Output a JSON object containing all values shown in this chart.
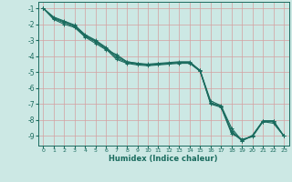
{
  "xlabel": "Humidex (Indice chaleur)",
  "background_color": "#cce8e4",
  "grid_color": "#d4a0a0",
  "line_color": "#1a6b5e",
  "xlim": [
    -0.5,
    23.5
  ],
  "ylim": [
    -9.6,
    -0.6
  ],
  "yticks": [
    -1,
    -2,
    -3,
    -4,
    -5,
    -6,
    -7,
    -8,
    -9
  ],
  "xticks": [
    0,
    1,
    2,
    3,
    4,
    5,
    6,
    7,
    8,
    9,
    10,
    11,
    12,
    13,
    14,
    15,
    16,
    17,
    18,
    19,
    20,
    21,
    22,
    23
  ],
  "x": [
    0,
    1,
    2,
    3,
    4,
    5,
    6,
    7,
    8,
    9,
    10,
    11,
    12,
    13,
    14,
    15,
    16,
    17,
    18,
    19,
    20,
    21,
    22,
    23
  ],
  "series": [
    [
      -1.0,
      -1.7,
      -2.0,
      -2.2,
      -2.8,
      -3.2,
      -3.6,
      -3.9,
      -4.35,
      -4.45,
      -4.55,
      -4.5,
      -4.45,
      -4.4,
      -4.4,
      -4.9,
      -6.8,
      -7.1,
      -8.5,
      -9.3,
      -8.95,
      -8.05,
      -8.05,
      -9.0
    ],
    [
      -1.0,
      -1.65,
      -1.9,
      -2.15,
      -2.75,
      -3.1,
      -3.55,
      -4.2,
      -4.45,
      -4.55,
      -4.6,
      -4.55,
      -4.5,
      -4.45,
      -4.45,
      -4.95,
      -6.9,
      -7.15,
      -8.75,
      -9.3,
      -9.0,
      -8.1,
      -8.1,
      -9.0
    ],
    [
      -1.0,
      -1.6,
      -1.85,
      -2.1,
      -2.7,
      -3.05,
      -3.5,
      -4.1,
      -4.4,
      -4.5,
      -4.55,
      -4.5,
      -4.45,
      -4.4,
      -4.4,
      -4.95,
      -7.0,
      -7.2,
      -8.85,
      -9.2,
      -9.05,
      -8.1,
      -8.2,
      -9.0
    ],
    [
      -1.0,
      -1.55,
      -1.8,
      -2.05,
      -2.65,
      -3.0,
      -3.45,
      -4.0,
      -4.35,
      -4.45,
      -4.5,
      -4.45,
      -4.4,
      -4.35,
      -4.35,
      -4.9,
      -6.95,
      -7.15,
      -8.7,
      -9.25,
      -9.0,
      -8.05,
      -8.05,
      -9.0
    ]
  ]
}
